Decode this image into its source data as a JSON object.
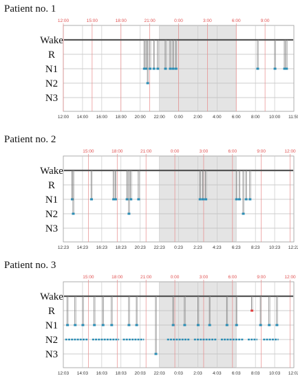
{
  "chart_data": [
    {
      "type": "line",
      "title": "Patient no. 1",
      "y_categories": [
        "Wake",
        "R",
        "N1",
        "N2",
        "N3"
      ],
      "top_ticks": [
        "12:00",
        "15:00",
        "18:00",
        "21:00",
        "0:00",
        "3:00",
        "6:00",
        "9:00"
      ],
      "bottom_ticks": [
        "12:00",
        "14:00",
        "16:00",
        "18:00",
        "20:00",
        "22:00",
        "0:00",
        "2:00",
        "4:00",
        "6:00",
        "8:00",
        "10:00",
        "11:59"
      ],
      "x_range_hours": [
        0,
        24
      ],
      "night_shading": [
        10,
        18
      ],
      "grid": true,
      "wake_baseline": "Wake",
      "events": [
        {
          "x": 8.4,
          "stage": "N1"
        },
        {
          "x": 8.6,
          "stage": "N1"
        },
        {
          "x": 8.75,
          "stage": "N2"
        },
        {
          "x": 9.0,
          "stage": "N1"
        },
        {
          "x": 9.4,
          "stage": "N1"
        },
        {
          "x": 9.8,
          "stage": "N1"
        },
        {
          "x": 10.6,
          "stage": "N1"
        },
        {
          "x": 11.1,
          "stage": "N1"
        },
        {
          "x": 11.4,
          "stage": "N1"
        },
        {
          "x": 11.7,
          "stage": "N1"
        },
        {
          "x": 20.2,
          "stage": "N1"
        },
        {
          "x": 22.0,
          "stage": "N1"
        },
        {
          "x": 23.0,
          "stage": "N1"
        },
        {
          "x": 23.2,
          "stage": "N1"
        }
      ]
    },
    {
      "type": "line",
      "title": "Patient no. 2",
      "y_categories": [
        "Wake",
        "R",
        "N1",
        "N2",
        "N3"
      ],
      "top_ticks": [
        "15:00",
        "18:00",
        "21:00",
        "0:00",
        "3:00",
        "6:00",
        "9:00",
        "12:00"
      ],
      "bottom_ticks": [
        "12:23",
        "14:23",
        "16:23",
        "18:23",
        "20:23",
        "22:23",
        "0:23",
        "2:23",
        "4:23",
        "6:23",
        "8:23",
        "10:23",
        "12:22"
      ],
      "x_range_hours": [
        0,
        24
      ],
      "night_shading": [
        10,
        18
      ],
      "grid": true,
      "wake_baseline": "Wake",
      "events": [
        {
          "x": 0.9,
          "stage": "N1"
        },
        {
          "x": 1.0,
          "stage": "N2"
        },
        {
          "x": 2.9,
          "stage": "N1"
        },
        {
          "x": 5.2,
          "stage": "N1"
        },
        {
          "x": 5.4,
          "stage": "N1"
        },
        {
          "x": 6.6,
          "stage": "N1"
        },
        {
          "x": 6.8,
          "stage": "N2"
        },
        {
          "x": 7.0,
          "stage": "N1"
        },
        {
          "x": 7.8,
          "stage": "N1"
        },
        {
          "x": 14.2,
          "stage": "N1"
        },
        {
          "x": 14.5,
          "stage": "N1"
        },
        {
          "x": 14.8,
          "stage": "N1"
        },
        {
          "x": 18.0,
          "stage": "N1"
        },
        {
          "x": 18.3,
          "stage": "N1"
        },
        {
          "x": 18.7,
          "stage": "N2"
        },
        {
          "x": 19.0,
          "stage": "N1"
        },
        {
          "x": 19.4,
          "stage": "N1"
        }
      ]
    },
    {
      "type": "line",
      "title": "Patient no. 3",
      "y_categories": [
        "Wake",
        "R",
        "N1",
        "N2",
        "N3"
      ],
      "top_ticks": [
        "15:00",
        "18:00",
        "21:00",
        "0:00",
        "3:00",
        "6:00",
        "9:00",
        "12:00"
      ],
      "bottom_ticks": [
        "12:03",
        "14:03",
        "16:03",
        "18:03",
        "20:03",
        "22:03",
        "0:03",
        "2:03",
        "4:03",
        "6:03",
        "8:03",
        "10:03",
        "12:02"
      ],
      "x_range_hours": [
        0,
        24
      ],
      "night_shading": [
        10,
        18
      ],
      "grid": true,
      "wake_baseline": "Wake",
      "n2_bands": [
        [
          0.2,
          2.6
        ],
        [
          3.0,
          5.8
        ],
        [
          6.2,
          8.4
        ],
        [
          10.8,
          13.2
        ],
        [
          13.6,
          16.0
        ],
        [
          16.4,
          18.8
        ],
        [
          19.2,
          20.2
        ],
        [
          20.8,
          22.4
        ]
      ],
      "events": [
        {
          "x": 0.4,
          "stage": "N1"
        },
        {
          "x": 1.2,
          "stage": "N1"
        },
        {
          "x": 2.0,
          "stage": "N1"
        },
        {
          "x": 3.2,
          "stage": "N1"
        },
        {
          "x": 4.1,
          "stage": "N1"
        },
        {
          "x": 5.0,
          "stage": "N1"
        },
        {
          "x": 6.8,
          "stage": "N1"
        },
        {
          "x": 7.6,
          "stage": "N1"
        },
        {
          "x": 9.6,
          "stage": "N3"
        },
        {
          "x": 11.4,
          "stage": "N1"
        },
        {
          "x": 12.6,
          "stage": "N1"
        },
        {
          "x": 14.0,
          "stage": "N1"
        },
        {
          "x": 15.2,
          "stage": "N1"
        },
        {
          "x": 17.0,
          "stage": "N1"
        },
        {
          "x": 18.0,
          "stage": "N1"
        },
        {
          "x": 19.6,
          "stage": "R"
        },
        {
          "x": 20.5,
          "stage": "N1"
        },
        {
          "x": 21.4,
          "stage": "N1"
        },
        {
          "x": 22.2,
          "stage": "N1"
        }
      ]
    }
  ]
}
